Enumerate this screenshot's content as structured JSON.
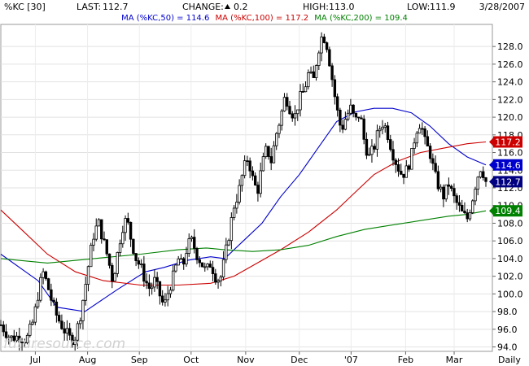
{
  "header": {
    "symbol": "%KC [30]",
    "last_label": "LAST:",
    "last_value": "112.7",
    "change_label": "CHANGE:",
    "change_value": "0.2",
    "high_label": "HIGH:",
    "high_value": "113.0",
    "low_label": "LOW:",
    "low_value": "111.9",
    "date": "3/28/2007"
  },
  "indicators": [
    {
      "label": "MA (%KC,50) = 114.6",
      "color": "#0000cc"
    },
    {
      "label": "MA (%KC,100) = 117.2",
      "color": "#cc0000"
    },
    {
      "label": "MA (%KC,200) = 109.4",
      "color": "#008000"
    }
  ],
  "watermark": "futuresource.com",
  "chart_data": {
    "type": "candlestick",
    "interval_label": "Daily",
    "ylim": [
      93.5,
      130.5
    ],
    "yticks": [
      94.0,
      96.0,
      98.0,
      100.0,
      102.0,
      104.0,
      106.0,
      108.0,
      110.0,
      112.0,
      114.0,
      116.0,
      118.0,
      120.0,
      122.0,
      124.0,
      126.0,
      128.0
    ],
    "ytick_labels": [
      "94.0",
      "96.0",
      "98.0",
      "100.0",
      "102.0",
      "104.0",
      "106.0",
      "108.0",
      "110.0",
      "112.0",
      "114.0",
      "116.0",
      "118.0",
      "120.0",
      "122.0",
      "124.0",
      "126.0",
      "128.0"
    ],
    "xticks": [
      {
        "label": "Jul",
        "pos": 0.074
      },
      {
        "label": "Aug",
        "pos": 0.186
      },
      {
        "label": "Sep",
        "pos": 0.297
      },
      {
        "label": "Oct",
        "pos": 0.408
      },
      {
        "label": "Nov",
        "pos": 0.525
      },
      {
        "label": "Dec",
        "pos": 0.64
      },
      {
        "label": "'07",
        "pos": 0.751
      },
      {
        "label": "Feb",
        "pos": 0.868
      },
      {
        "label": "Mar",
        "pos": 0.972
      }
    ],
    "price_path": [
      [
        0.0,
        96.5
      ],
      [
        0.02,
        95.0
      ],
      [
        0.04,
        95.2
      ],
      [
        0.055,
        94.8
      ],
      [
        0.07,
        97.0
      ],
      [
        0.08,
        100.0
      ],
      [
        0.09,
        102.5
      ],
      [
        0.1,
        101.0
      ],
      [
        0.11,
        99.0
      ],
      [
        0.12,
        97.5
      ],
      [
        0.135,
        96.0
      ],
      [
        0.15,
        94.8
      ],
      [
        0.16,
        95.2
      ],
      [
        0.17,
        97.5
      ],
      [
        0.18,
        100.5
      ],
      [
        0.19,
        104.0
      ],
      [
        0.2,
        107.0
      ],
      [
        0.21,
        108.0
      ],
      [
        0.22,
        106.0
      ],
      [
        0.23,
        104.0
      ],
      [
        0.24,
        101.5
      ],
      [
        0.25,
        104.5
      ],
      [
        0.26,
        107.5
      ],
      [
        0.27,
        108.5
      ],
      [
        0.28,
        106.0
      ],
      [
        0.29,
        104.0
      ],
      [
        0.3,
        103.0
      ],
      [
        0.31,
        101.5
      ],
      [
        0.32,
        100.5
      ],
      [
        0.33,
        101.5
      ],
      [
        0.34,
        100.0
      ],
      [
        0.35,
        98.5
      ],
      [
        0.36,
        100.5
      ],
      [
        0.37,
        102.0
      ],
      [
        0.38,
        104.0
      ],
      [
        0.39,
        103.0
      ],
      [
        0.4,
        105.5
      ],
      [
        0.41,
        106.0
      ],
      [
        0.42,
        104.5
      ],
      [
        0.43,
        103.5
      ],
      [
        0.44,
        102.5
      ],
      [
        0.45,
        103.5
      ],
      [
        0.46,
        102.0
      ],
      [
        0.47,
        101.5
      ],
      [
        0.48,
        104.0
      ],
      [
        0.49,
        107.0
      ],
      [
        0.5,
        110.0
      ],
      [
        0.51,
        111.5
      ],
      [
        0.52,
        114.0
      ],
      [
        0.53,
        115.5
      ],
      [
        0.54,
        113.0
      ],
      [
        0.55,
        111.5
      ],
      [
        0.56,
        114.5
      ],
      [
        0.57,
        116.5
      ],
      [
        0.58,
        115.0
      ],
      [
        0.59,
        118.0
      ],
      [
        0.6,
        120.0
      ],
      [
        0.61,
        122.5
      ],
      [
        0.62,
        121.0
      ],
      [
        0.63,
        120.0
      ],
      [
        0.64,
        122.0
      ],
      [
        0.65,
        123.0
      ],
      [
        0.66,
        125.0
      ],
      [
        0.67,
        124.0
      ],
      [
        0.68,
        127.5
      ],
      [
        0.69,
        129.5
      ],
      [
        0.7,
        128.0
      ],
      [
        0.71,
        124.5
      ],
      [
        0.72,
        121.0
      ],
      [
        0.73,
        118.5
      ],
      [
        0.74,
        120.0
      ],
      [
        0.75,
        121.0
      ],
      [
        0.76,
        119.5
      ],
      [
        0.77,
        120.5
      ],
      [
        0.78,
        117.0
      ],
      [
        0.79,
        115.5
      ],
      [
        0.8,
        116.5
      ],
      [
        0.81,
        118.5
      ],
      [
        0.82,
        119.5
      ],
      [
        0.83,
        118.0
      ],
      [
        0.84,
        116.0
      ],
      [
        0.85,
        114.5
      ],
      [
        0.86,
        113.5
      ],
      [
        0.87,
        114.0
      ],
      [
        0.88,
        115.5
      ],
      [
        0.89,
        118.5
      ],
      [
        0.9,
        119.5
      ],
      [
        0.91,
        117.0
      ],
      [
        0.92,
        116.0
      ],
      [
        0.93,
        113.5
      ],
      [
        0.94,
        112.0
      ],
      [
        0.95,
        111.0
      ],
      [
        0.96,
        112.5
      ],
      [
        0.97,
        111.0
      ],
      [
        0.98,
        110.0
      ],
      [
        0.99,
        109.0
      ],
      [
        1.0,
        108.5
      ],
      [
        1.01,
        110.5
      ],
      [
        1.02,
        113.0
      ],
      [
        1.03,
        114.5
      ],
      [
        1.04,
        112.7
      ]
    ],
    "series": [
      {
        "name": "MA (%KC,50)",
        "color": "#0000cc",
        "points": [
          [
            0.0,
            104.5
          ],
          [
            0.08,
            101.5
          ],
          [
            0.12,
            98.5
          ],
          [
            0.18,
            98.0
          ],
          [
            0.25,
            100.5
          ],
          [
            0.31,
            102.5
          ],
          [
            0.35,
            103.0
          ],
          [
            0.4,
            103.8
          ],
          [
            0.45,
            104.2
          ],
          [
            0.48,
            104.0
          ],
          [
            0.52,
            106.0
          ],
          [
            0.56,
            108.0
          ],
          [
            0.6,
            111.0
          ],
          [
            0.64,
            113.5
          ],
          [
            0.68,
            116.5
          ],
          [
            0.72,
            119.5
          ],
          [
            0.76,
            120.6
          ],
          [
            0.8,
            121.0
          ],
          [
            0.84,
            121.0
          ],
          [
            0.88,
            120.5
          ],
          [
            0.92,
            119.0
          ],
          [
            0.96,
            117.0
          ],
          [
            1.0,
            115.5
          ],
          [
            1.04,
            114.6
          ]
        ]
      },
      {
        "name": "MA (%KC,100)",
        "color": "#cc0000",
        "points": [
          [
            0.0,
            109.5
          ],
          [
            0.05,
            107.0
          ],
          [
            0.1,
            104.5
          ],
          [
            0.16,
            102.5
          ],
          [
            0.22,
            101.5
          ],
          [
            0.3,
            101.0
          ],
          [
            0.38,
            101.0
          ],
          [
            0.45,
            101.2
          ],
          [
            0.5,
            102.0
          ],
          [
            0.55,
            103.5
          ],
          [
            0.6,
            105.0
          ],
          [
            0.66,
            107.0
          ],
          [
            0.72,
            109.5
          ],
          [
            0.76,
            111.5
          ],
          [
            0.8,
            113.5
          ],
          [
            0.85,
            115.0
          ],
          [
            0.9,
            116.0
          ],
          [
            0.95,
            116.5
          ],
          [
            1.0,
            117.0
          ],
          [
            1.04,
            117.2
          ]
        ]
      },
      {
        "name": "MA (%KC,200)",
        "color": "#008000",
        "points": [
          [
            0.0,
            104.0
          ],
          [
            0.1,
            103.5
          ],
          [
            0.2,
            104.0
          ],
          [
            0.3,
            104.5
          ],
          [
            0.38,
            105.0
          ],
          [
            0.44,
            105.2
          ],
          [
            0.48,
            105.0
          ],
          [
            0.54,
            104.8
          ],
          [
            0.6,
            105.0
          ],
          [
            0.66,
            105.5
          ],
          [
            0.72,
            106.5
          ],
          [
            0.78,
            107.3
          ],
          [
            0.84,
            107.8
          ],
          [
            0.9,
            108.3
          ],
          [
            0.96,
            108.8
          ],
          [
            1.0,
            109.0
          ],
          [
            1.04,
            109.4
          ]
        ]
      }
    ],
    "price_badges": [
      {
        "value": 117.2,
        "label": "117.2",
        "color": "#cc0000"
      },
      {
        "value": 114.6,
        "label": "114.6",
        "color": "#0000cc"
      },
      {
        "value": 112.7,
        "label": "112.7",
        "color": "#000080"
      },
      {
        "value": 109.4,
        "label": "109.4",
        "color": "#008000"
      }
    ]
  }
}
